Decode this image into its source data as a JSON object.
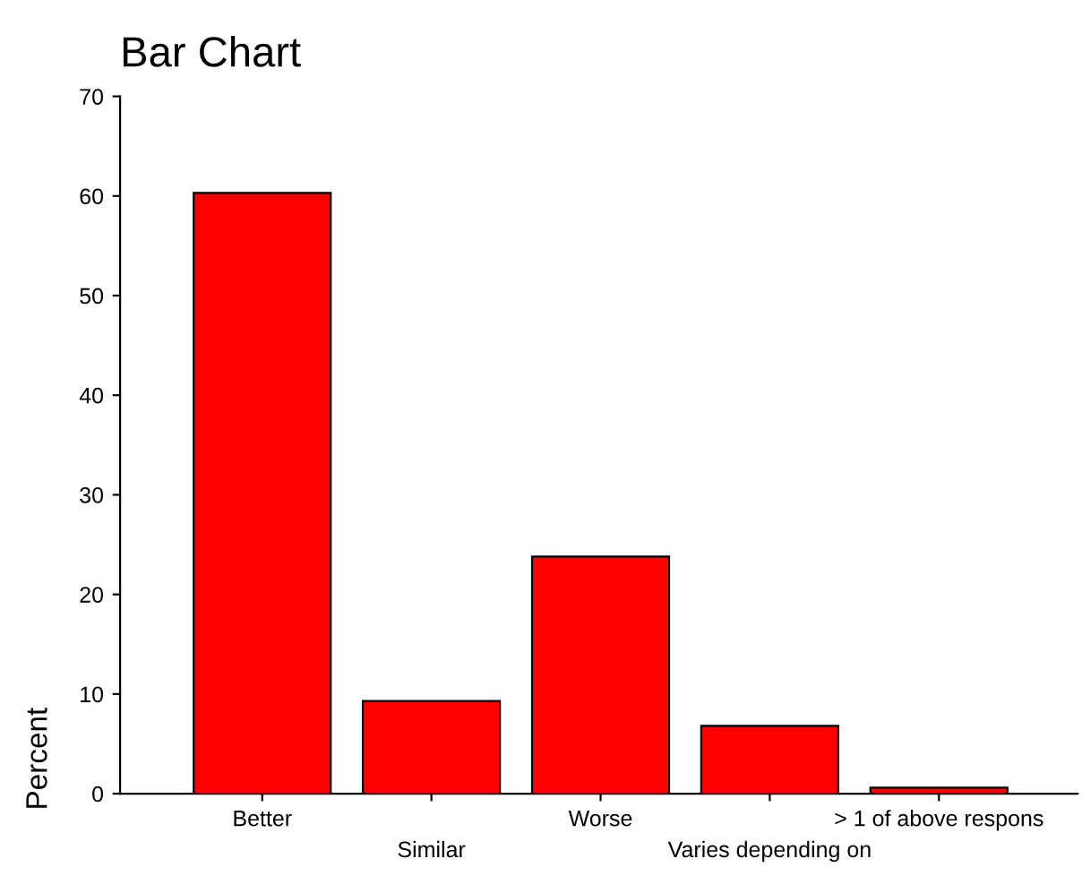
{
  "chart_data": {
    "type": "bar",
    "title": "Bar Chart",
    "ylabel": "Percent",
    "categories": [
      "Better",
      "Similar",
      "Worse",
      "Varies depending on",
      "> 1 of above respons"
    ],
    "values": [
      60.3,
      9.3,
      23.8,
      6.8,
      0.6
    ],
    "color": "#ff0000",
    "ylim": [
      0,
      70
    ],
    "yticks": [
      0,
      10,
      20,
      30,
      40,
      50,
      60,
      70
    ],
    "grid": false
  }
}
